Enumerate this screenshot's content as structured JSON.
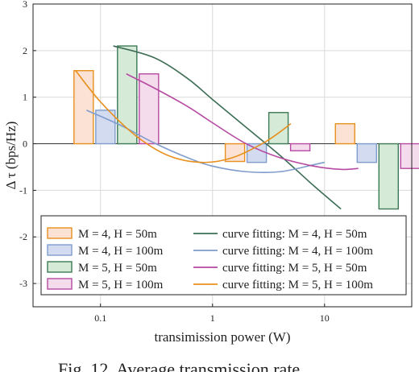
{
  "chart_data": {
    "type": "bar",
    "xlabel": "transimission power (W)",
    "ylabel": "Δ τ (bps/Hz)",
    "xscale": "log",
    "xlim": [
      0.025,
      60
    ],
    "ylim": [
      -3.5,
      3
    ],
    "yticks": [
      -3,
      -2,
      -1,
      0,
      1,
      2,
      3
    ],
    "xticks": [
      {
        "value": 0.1,
        "label": "0.1"
      },
      {
        "value": 1,
        "label": "1"
      },
      {
        "value": 10,
        "label": "10"
      }
    ],
    "grid": true,
    "legend_position": "bottom",
    "bar_groups": [
      {
        "x": 0.058,
        "bars": [
          1.57,
          0.72,
          2.1,
          1.5
        ]
      },
      {
        "x": 1.3,
        "bars": [
          -0.38,
          -0.4,
          0.67,
          -0.15
        ]
      },
      {
        "x": 12.5,
        "bars": [
          0.43,
          -0.4,
          -1.4,
          -0.53
        ]
      }
    ],
    "series": [
      {
        "name": "M = 4, H = 50m",
        "kind": "bar",
        "fill": "#fbe2d4",
        "stroke": "#e8901e"
      },
      {
        "name": "M = 4, H = 100m",
        "kind": "bar",
        "fill": "#d2dbf0",
        "stroke": "#7f9ccd"
      },
      {
        "name": "M = 5, H = 50m",
        "kind": "bar",
        "fill": "#d6ead8",
        "stroke": "#3d7a55"
      },
      {
        "name": "M = 5, H = 100m",
        "kind": "bar",
        "fill": "#f4dcec",
        "stroke": "#b64aa2"
      },
      {
        "name": "curve fitting: M = 4, H = 50m",
        "kind": "line",
        "color": "#3d6e55",
        "x": [
          0.13,
          0.3,
          0.6,
          1.0,
          2.0,
          4.0,
          8.0,
          14.0
        ],
        "y": [
          2.1,
          1.85,
          1.4,
          0.95,
          0.35,
          -0.25,
          -0.9,
          -1.4
        ]
      },
      {
        "name": "curve fitting: M = 4, H = 100m",
        "kind": "line",
        "color": "#7f9ccd",
        "x": [
          0.075,
          0.15,
          0.3,
          0.6,
          1.0,
          2.0,
          4.0,
          8.0,
          10.0
        ],
        "y": [
          0.72,
          0.4,
          0.02,
          -0.3,
          -0.48,
          -0.6,
          -0.6,
          -0.45,
          -0.4
        ]
      },
      {
        "name": "curve fitting: M = 5, H = 50m",
        "kind": "line",
        "color": "#b64aa2",
        "x": [
          0.17,
          0.3,
          0.6,
          1.0,
          2.0,
          4.0,
          8.0,
          14.0,
          20.0
        ],
        "y": [
          1.5,
          1.2,
          0.8,
          0.45,
          0.0,
          -0.3,
          -0.48,
          -0.55,
          -0.53
        ]
      },
      {
        "name": "curve fitting: M = 5, H = 100m",
        "kind": "line",
        "color": "#e8901e",
        "x": [
          0.06,
          0.1,
          0.2,
          0.4,
          0.8,
          1.5,
          3.0,
          5.0
        ],
        "y": [
          1.57,
          0.9,
          0.2,
          -0.25,
          -0.4,
          -0.3,
          0.05,
          0.43
        ]
      }
    ]
  },
  "caption": "Fig. 12. Average transmission rate"
}
